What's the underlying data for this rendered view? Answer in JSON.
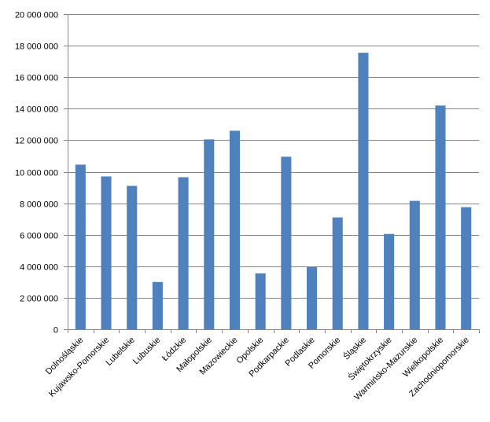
{
  "chart_data": {
    "type": "bar",
    "title": "",
    "xlabel": "",
    "ylabel": "",
    "ylim": [
      0,
      20000000
    ],
    "yticks": [
      0,
      2000000,
      4000000,
      6000000,
      8000000,
      10000000,
      12000000,
      14000000,
      16000000,
      18000000,
      20000000
    ],
    "ytick_labels": [
      "0",
      "2 000 000",
      "4 000 000",
      "6 000 000",
      "8 000 000",
      "10 000 000",
      "12 000 000",
      "14 000 000",
      "16 000 000",
      "18 000 000",
      "20 000 000"
    ],
    "grid": true,
    "legend": "none",
    "bar_color": "#4F81BD",
    "categories": [
      "Dolnośląskie",
      "Kujawsko-Pomorskie",
      "Lubelskie",
      "Lubuskie",
      "Łódzkie",
      "Małopolskie",
      "Mazowieckie",
      "Opolskie",
      "Podkarpackie",
      "Podlaskie",
      "Pomorskie",
      "Śląskie",
      "Świętokrzyskie",
      "Warmińsko-Mazurskie",
      "Wielkopolskie",
      "Zachodniopomorskie"
    ],
    "values": [
      10450000,
      9700000,
      9100000,
      3000000,
      9650000,
      12050000,
      12600000,
      3550000,
      10950000,
      3950000,
      7100000,
      17550000,
      6050000,
      8150000,
      14200000,
      7750000
    ]
  }
}
